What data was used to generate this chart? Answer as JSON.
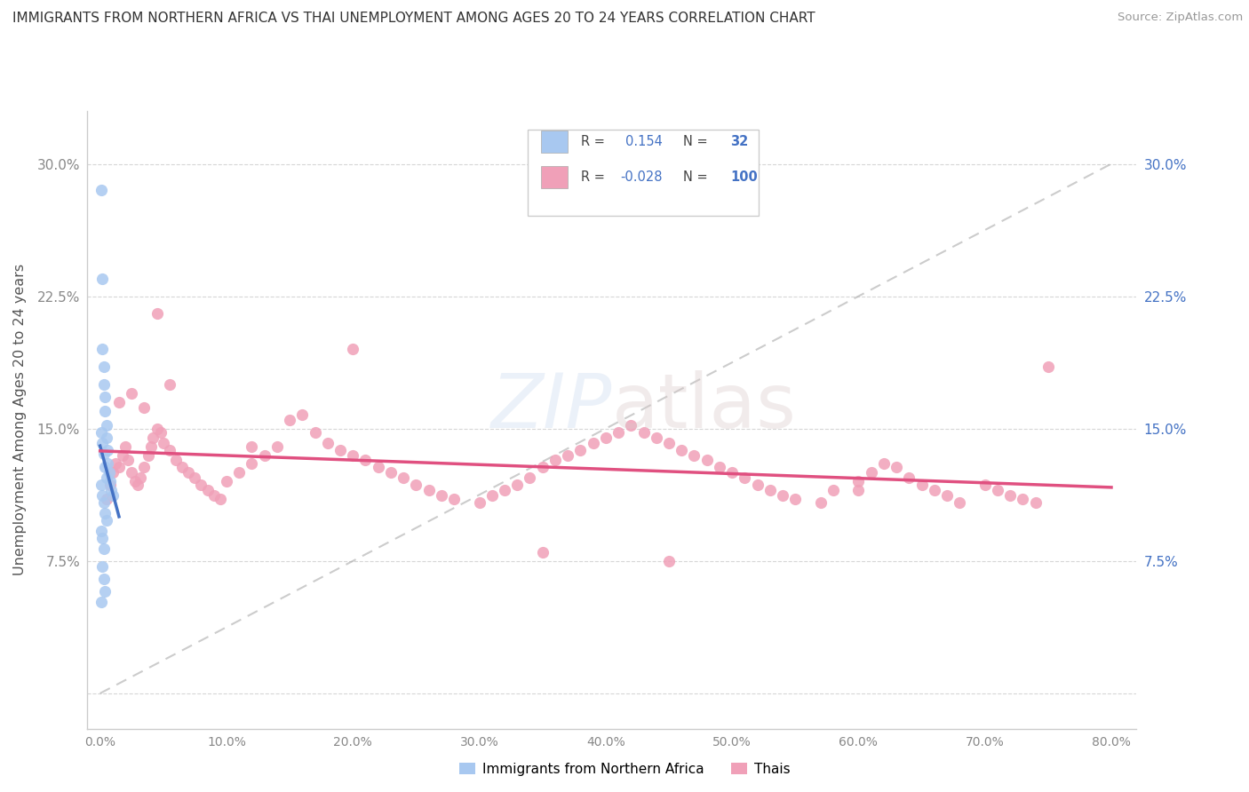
{
  "title": "IMMIGRANTS FROM NORTHERN AFRICA VS THAI UNEMPLOYMENT AMONG AGES 20 TO 24 YEARS CORRELATION CHART",
  "source": "Source: ZipAtlas.com",
  "ylabel": "Unemployment Among Ages 20 to 24 years",
  "color_blue": "#a8c8f0",
  "color_pink": "#f0a0b8",
  "color_blue_line": "#4472c4",
  "color_pink_line": "#e05080",
  "color_right_axis": "#4472c4",
  "color_grid": "#cccccc",
  "yticks": [
    0.0,
    0.075,
    0.15,
    0.225,
    0.3
  ],
  "ytick_labels_left": [
    "",
    "7.5%",
    "15.0%",
    "22.5%",
    "30.0%"
  ],
  "ytick_labels_right": [
    "",
    "7.5%",
    "15.0%",
    "22.5%",
    "30.0%"
  ],
  "xticks": [
    0.0,
    0.1,
    0.2,
    0.3,
    0.4,
    0.5,
    0.6,
    0.7,
    0.8
  ],
  "xtick_labels": [
    "0.0%",
    "10.0%",
    "20.0%",
    "30.0%",
    "40.0%",
    "50.0%",
    "60.0%",
    "70.0%",
    "80.0%"
  ],
  "xlim": [
    -0.01,
    0.82
  ],
  "ylim": [
    -0.02,
    0.33
  ],
  "legend_r1": "R =  0.154",
  "legend_n1": "N =  32",
  "legend_r2": "R = -0.028",
  "legend_n2": "N = 100",
  "blue_x": [
    0.001,
    0.002,
    0.002,
    0.003,
    0.003,
    0.004,
    0.004,
    0.005,
    0.005,
    0.006,
    0.006,
    0.007,
    0.008,
    0.009,
    0.01,
    0.001,
    0.002,
    0.003,
    0.004,
    0.005,
    0.001,
    0.002,
    0.003,
    0.004,
    0.005,
    0.001,
    0.002,
    0.003,
    0.002,
    0.003,
    0.004,
    0.001
  ],
  "blue_y": [
    0.285,
    0.235,
    0.195,
    0.185,
    0.175,
    0.168,
    0.16,
    0.152,
    0.145,
    0.138,
    0.13,
    0.125,
    0.12,
    0.115,
    0.112,
    0.148,
    0.142,
    0.136,
    0.128,
    0.122,
    0.118,
    0.112,
    0.108,
    0.102,
    0.098,
    0.092,
    0.088,
    0.082,
    0.072,
    0.065,
    0.058,
    0.052
  ],
  "pink_x": [
    0.005,
    0.008,
    0.01,
    0.012,
    0.015,
    0.018,
    0.02,
    0.022,
    0.025,
    0.028,
    0.03,
    0.032,
    0.035,
    0.038,
    0.04,
    0.042,
    0.045,
    0.048,
    0.05,
    0.055,
    0.06,
    0.065,
    0.07,
    0.075,
    0.08,
    0.085,
    0.09,
    0.095,
    0.1,
    0.11,
    0.12,
    0.13,
    0.14,
    0.15,
    0.16,
    0.17,
    0.18,
    0.19,
    0.2,
    0.21,
    0.22,
    0.23,
    0.24,
    0.25,
    0.26,
    0.27,
    0.28,
    0.3,
    0.31,
    0.32,
    0.33,
    0.34,
    0.35,
    0.36,
    0.37,
    0.38,
    0.39,
    0.4,
    0.41,
    0.42,
    0.43,
    0.44,
    0.45,
    0.46,
    0.47,
    0.48,
    0.49,
    0.5,
    0.51,
    0.52,
    0.53,
    0.54,
    0.55,
    0.57,
    0.58,
    0.6,
    0.61,
    0.62,
    0.63,
    0.64,
    0.65,
    0.66,
    0.67,
    0.68,
    0.7,
    0.71,
    0.72,
    0.73,
    0.74,
    0.75,
    0.015,
    0.025,
    0.035,
    0.045,
    0.055,
    0.12,
    0.2,
    0.35,
    0.45,
    0.6
  ],
  "pink_y": [
    0.11,
    0.118,
    0.125,
    0.13,
    0.128,
    0.135,
    0.14,
    0.132,
    0.125,
    0.12,
    0.118,
    0.122,
    0.128,
    0.135,
    0.14,
    0.145,
    0.15,
    0.148,
    0.142,
    0.138,
    0.132,
    0.128,
    0.125,
    0.122,
    0.118,
    0.115,
    0.112,
    0.11,
    0.12,
    0.125,
    0.13,
    0.135,
    0.14,
    0.155,
    0.158,
    0.148,
    0.142,
    0.138,
    0.135,
    0.132,
    0.128,
    0.125,
    0.122,
    0.118,
    0.115,
    0.112,
    0.11,
    0.108,
    0.112,
    0.115,
    0.118,
    0.122,
    0.128,
    0.132,
    0.135,
    0.138,
    0.142,
    0.145,
    0.148,
    0.152,
    0.148,
    0.145,
    0.142,
    0.138,
    0.135,
    0.132,
    0.128,
    0.125,
    0.122,
    0.118,
    0.115,
    0.112,
    0.11,
    0.108,
    0.115,
    0.12,
    0.125,
    0.13,
    0.128,
    0.122,
    0.118,
    0.115,
    0.112,
    0.108,
    0.118,
    0.115,
    0.112,
    0.11,
    0.108,
    0.185,
    0.165,
    0.17,
    0.162,
    0.215,
    0.175,
    0.14,
    0.195,
    0.08,
    0.075,
    0.115
  ]
}
